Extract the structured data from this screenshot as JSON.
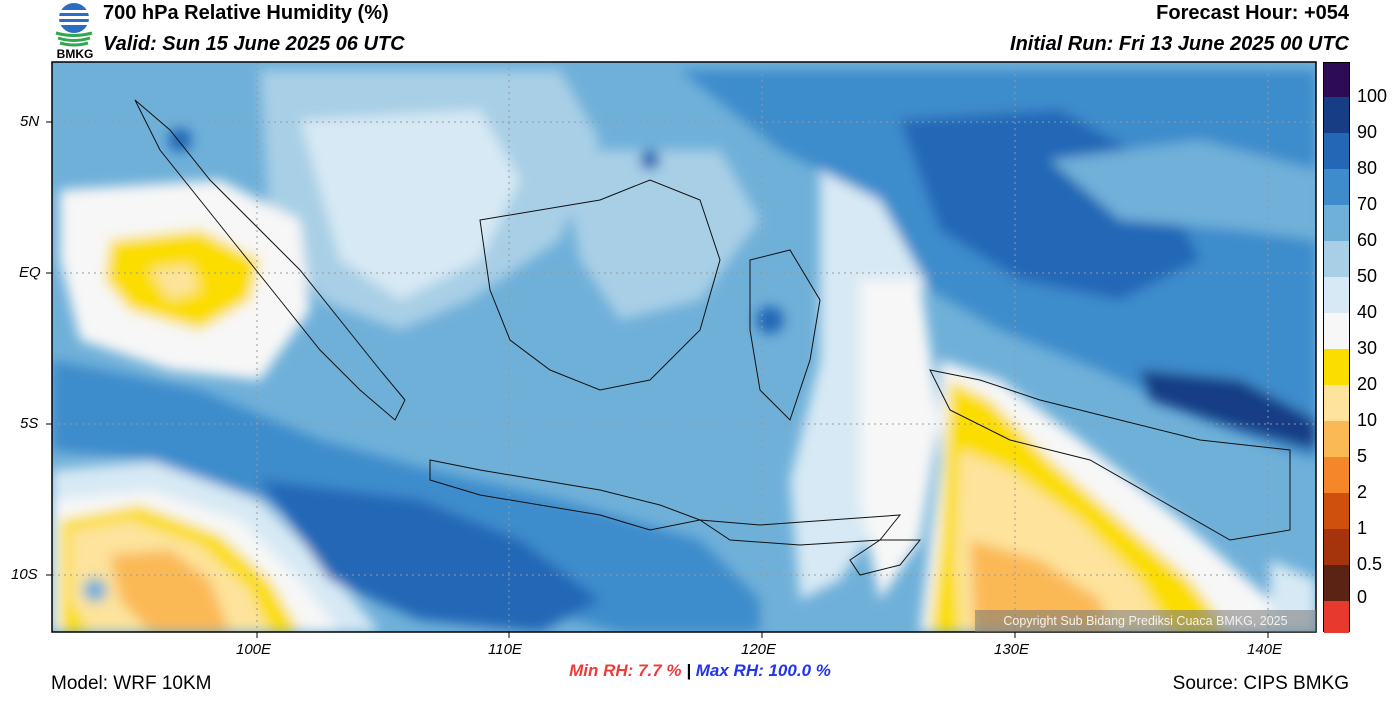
{
  "header": {
    "logo_text": "BMKG",
    "title": "700 hPa Relative Humidity (%)",
    "valid": "Valid: Sun 15 June 2025 06 UTC",
    "forecast_hour": "Forecast Hour: +054",
    "initial_run": "Initial Run: Fri 13 June 2025 00 UTC"
  },
  "map": {
    "region": "Indonesia",
    "lat_labels": [
      "5N",
      "EQ",
      "5S",
      "10S"
    ],
    "lon_labels": [
      "100E",
      "110E",
      "120E",
      "130E",
      "140E"
    ],
    "extent": {
      "lon_min": 92,
      "lon_max": 142,
      "lat_min": -12,
      "lat_max": 7
    },
    "copyright": "Copyright Sub Bidang Prediksi Cuaca BMKG, 2025"
  },
  "colorbar": {
    "labels": [
      "100",
      "90",
      "80",
      "70",
      "60",
      "50",
      "40",
      "30",
      "20",
      "10",
      "5",
      "2",
      "1",
      "0.5",
      "0"
    ],
    "colors": [
      "#fdfdfd",
      "#ececec",
      "#f7f7f7",
      "#d7e9f4",
      "#a8cfe6",
      "#6fb0d9",
      "#3e8ccc",
      "#2467b6",
      "#173e85",
      "#2e0b55"
    ],
    "low_colors": [
      "#e8392f",
      "#c11b1b",
      "#5b2313",
      "#8a2b10",
      "#a5340c",
      "#cf4f0d",
      "#f5872a",
      "#fbb956",
      "#fde39b",
      "#fbdd00"
    ]
  },
  "stats": {
    "min_rh": "Min RH:   7.7 %",
    "separator": "|",
    "max_rh": "Max RH: 100.0 %"
  },
  "footer": {
    "model": "Model: WRF 10KM",
    "source": "Source: CIPS BMKG"
  }
}
